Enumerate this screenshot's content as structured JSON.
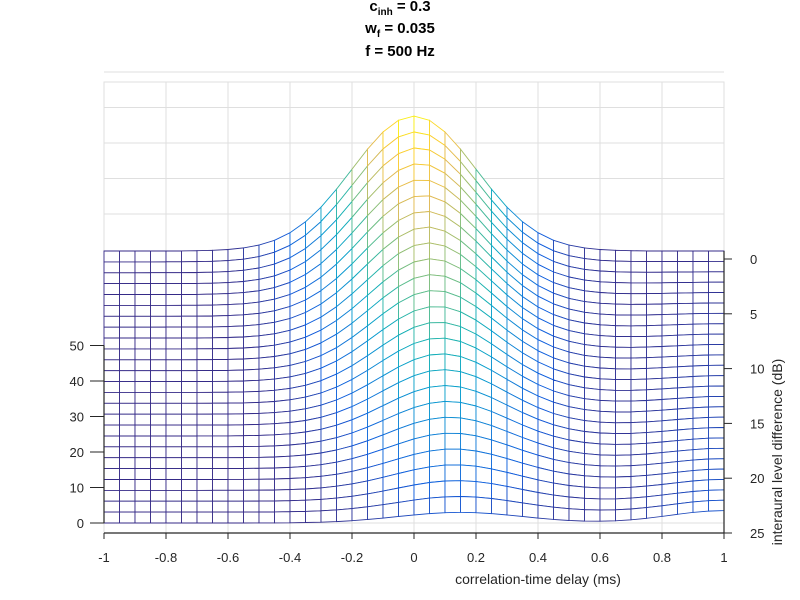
{
  "title": {
    "line1_main": "c",
    "line1_sub": "inh",
    "line1_rest": " = 0.3",
    "line2_main": "w",
    "line2_sub": "f",
    "line2_rest": " = 0.035",
    "line3": "f = 500 Hz"
  },
  "chart_data": {
    "type": "surface-mesh",
    "xlabel": "correlation-time delay (ms)",
    "ylabel": "interaural level difference (dB)",
    "zlabel": "",
    "xlim": [
      -1,
      1
    ],
    "ylim": [
      0,
      25
    ],
    "zlim": [
      0,
      50
    ],
    "x_ticks": [
      "-1",
      "-0.8",
      "-0.6",
      "-0.4",
      "-0.2",
      "0",
      "0.2",
      "0.4",
      "0.6",
      "0.8",
      "1"
    ],
    "y_ticks": [
      "0",
      "5",
      "10",
      "15",
      "20",
      "25"
    ],
    "z_ticks": [
      "0",
      "10",
      "20",
      "30",
      "40",
      "50"
    ],
    "grid": true,
    "colormap": "parula",
    "colors": {
      "low": "#352a87",
      "mid": "#21b0c3",
      "high": "#f9fb0e"
    },
    "surface": {
      "x_samples": 41,
      "ild_samples": 26,
      "peak_delay_ms": [
        0,
        0.15
      ],
      "peak_height_top": 38,
      "peak_height_bottom": 3,
      "peak_width_ms": 0.2,
      "baseline_left": 0,
      "baseline_right": 0
    }
  }
}
